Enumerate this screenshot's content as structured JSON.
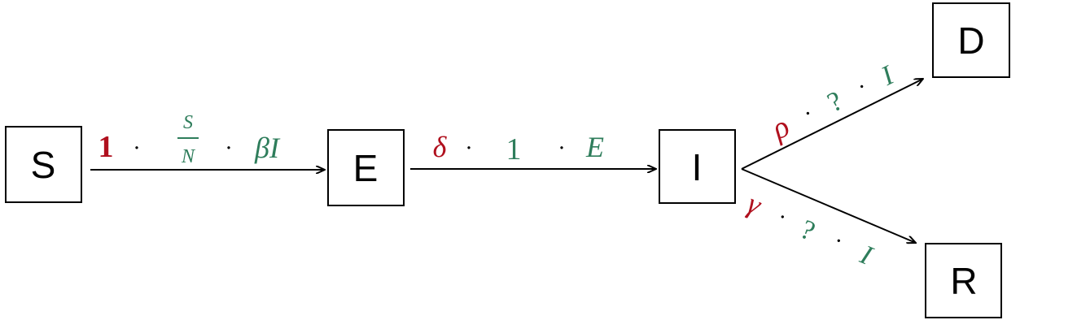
{
  "colors": {
    "red": "#b0101e",
    "green": "#2e7d5b",
    "black": "#000000"
  },
  "nodes": {
    "s": "S",
    "e": "E",
    "i": "I",
    "d": "D",
    "r": "R"
  },
  "edges": {
    "s_to_e": {
      "coeff": "1",
      "frac_num": "S",
      "frac_den": "N",
      "term": "βI"
    },
    "e_to_i": {
      "coeff": "δ",
      "middle": "1",
      "term": "E"
    },
    "i_to_d": {
      "coeff": "ρ",
      "middle": "?",
      "term": "I"
    },
    "i_to_r": {
      "coeff": "γ",
      "middle": "?",
      "term": "I"
    }
  },
  "dot_symbol": "·"
}
